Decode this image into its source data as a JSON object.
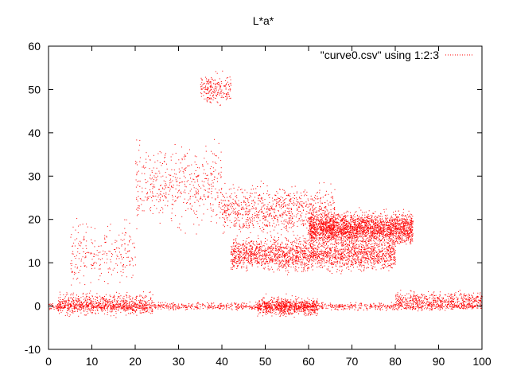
{
  "chart_data": {
    "type": "scatter",
    "title": "L*a*",
    "xlabel": "",
    "ylabel": "",
    "xlim": [
      0,
      100
    ],
    "ylim": [
      -10,
      60
    ],
    "xticks": [
      0,
      10,
      20,
      30,
      40,
      50,
      60,
      70,
      80,
      90,
      100
    ],
    "yticks": [
      -10,
      0,
      10,
      20,
      30,
      40,
      50,
      60
    ],
    "grid": false,
    "legend_position": "top-right",
    "series": [
      {
        "name": "\"curve0.csv\" using 1:2:3",
        "color": "#ff0000",
        "clusters": [
          {
            "x_range": [
              0,
              100
            ],
            "y_center": 0,
            "y_spread": 1.2,
            "count": 1400
          },
          {
            "x_range": [
              2,
              24
            ],
            "y_center": 0.5,
            "y_spread": 3.5,
            "count": 700
          },
          {
            "x_range": [
              60,
              84
            ],
            "y_center": 18,
            "y_spread": 5,
            "count": 2600
          },
          {
            "x_range": [
              42,
              80
            ],
            "y_center": 12,
            "y_spread": 5,
            "count": 2200
          },
          {
            "x_range": [
              40,
              66
            ],
            "y_center": 22,
            "y_spread": 8,
            "count": 900
          },
          {
            "x_range": [
              35,
              42
            ],
            "y_center": 50,
            "y_spread": 5,
            "count": 220
          },
          {
            "x_range": [
              20,
              40
            ],
            "y_center": 28,
            "y_spread": 12,
            "count": 500
          },
          {
            "x_range": [
              5,
              20
            ],
            "y_center": 12,
            "y_spread": 10,
            "count": 250
          },
          {
            "x_range": [
              48,
              62
            ],
            "y_center": 0,
            "y_spread": 3,
            "count": 700
          },
          {
            "x_range": [
              80,
              100
            ],
            "y_center": 1.5,
            "y_spread": 2.5,
            "count": 500
          }
        ]
      }
    ]
  }
}
